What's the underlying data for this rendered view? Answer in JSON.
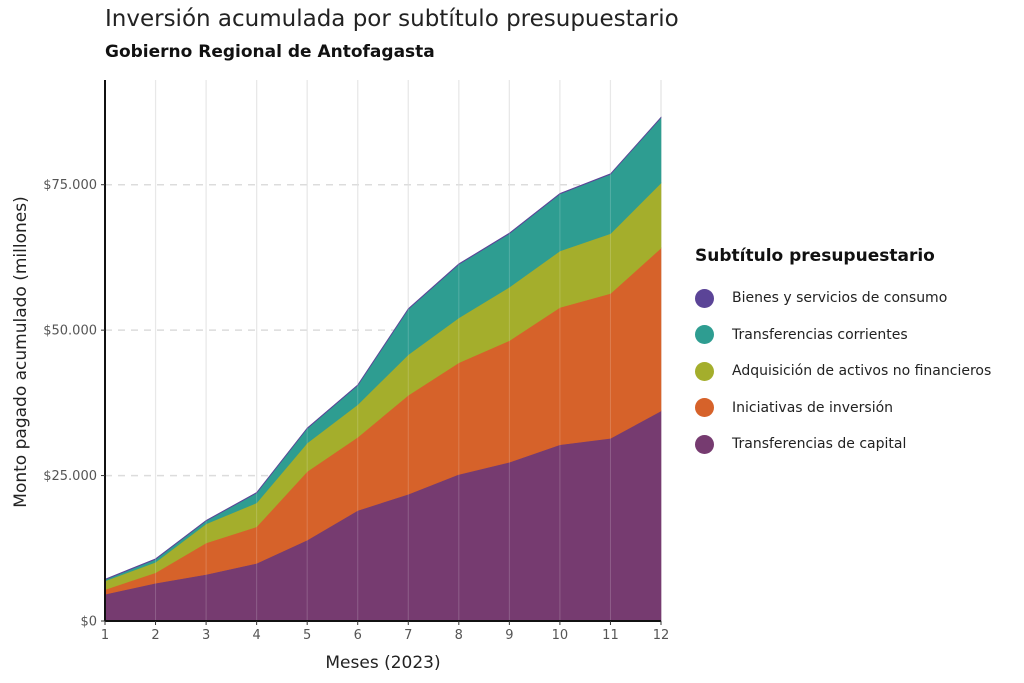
{
  "chart_data": {
    "type": "area",
    "title": "Inversión acumulada por subtítulo presupuestario",
    "subtitle": "Gobierno Regional de Antofagasta",
    "xlabel": "Meses (2023)",
    "ylabel": "Monto pagado acumulado (millones)",
    "x": [
      1,
      2,
      3,
      4,
      5,
      6,
      7,
      8,
      9,
      10,
      11,
      12
    ],
    "xlim": [
      1,
      12
    ],
    "ylim": [
      0,
      93000
    ],
    "yticks": [
      0,
      25000,
      50000,
      75000
    ],
    "ytick_labels": [
      "$0",
      "$25.000",
      "$50.000",
      "$75.000"
    ],
    "stacked": true,
    "grid": "vertical lines and dashed horizontal lines",
    "legend_title": "Subtítulo presupuestario",
    "legend_position": "right",
    "series": [
      {
        "name": "Transferencias de capital",
        "color": "#763b70",
        "values": [
          4600,
          6500,
          8000,
          9900,
          13900,
          19000,
          21800,
          25200,
          27300,
          30300,
          31400,
          36100
        ]
      },
      {
        "name": "Iniciativas de inversión",
        "color": "#d6622a",
        "values": [
          800,
          1800,
          5400,
          6300,
          11800,
          12600,
          17000,
          19200,
          20900,
          23600,
          24900,
          28000
        ]
      },
      {
        "name": "Adquisición de activos no financieros",
        "color": "#a4ae2c",
        "values": [
          1500,
          1800,
          3300,
          4100,
          4900,
          5600,
          7000,
          7700,
          9200,
          9700,
          10300,
          11200
        ]
      },
      {
        "name": "Transferencias corrientes",
        "color": "#2e9d91",
        "values": [
          200,
          500,
          500,
          1700,
          2500,
          3300,
          7800,
          9200,
          9200,
          9800,
          10200,
          11200
        ]
      },
      {
        "name": "Bienes y servicios de consumo",
        "color": "#5b4497",
        "values": [
          100,
          100,
          100,
          100,
          100,
          100,
          100,
          100,
          100,
          100,
          100,
          100
        ]
      }
    ],
    "legend_order": [
      "Bienes y servicios de consumo",
      "Transferencias corrientes",
      "Adquisición de activos no financieros",
      "Iniciativas de inversión",
      "Transferencias de capital"
    ]
  }
}
